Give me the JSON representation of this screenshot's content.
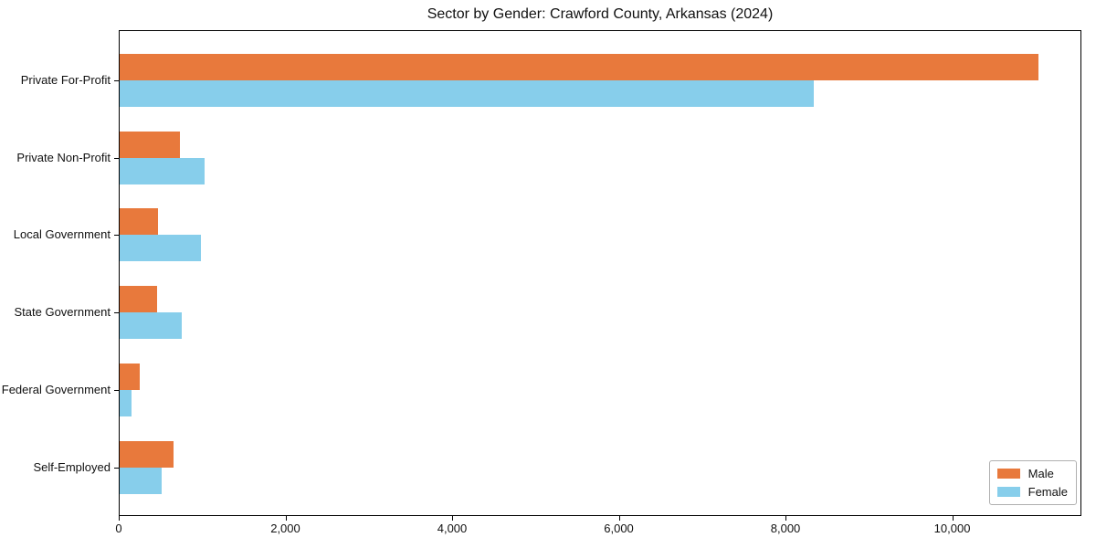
{
  "chart": {
    "background_color": "#ffffff",
    "spine_color": "#000000",
    "text_color": "#111111"
  },
  "chart_data": {
    "type": "bar",
    "orientation": "horizontal",
    "title": "Sector by Gender: Crawford County, Arkansas (2024)",
    "categories": [
      "Private For-Profit",
      "Private Non-Profit",
      "Local Government",
      "State Government",
      "Federal Government",
      "Self-Employed"
    ],
    "series": [
      {
        "name": "Male",
        "color": "#E8793C",
        "values": [
          11020,
          722,
          460,
          446,
          244,
          650
        ]
      },
      {
        "name": "Female",
        "color": "#87CEEB",
        "values": [
          8330,
          1015,
          975,
          741,
          146,
          504
        ]
      }
    ],
    "xlabel": "",
    "ylabel": "",
    "xlim": [
      0,
      11550
    ],
    "xticks": [
      0,
      2000,
      4000,
      6000,
      8000,
      10000
    ],
    "xtick_labels": [
      "0",
      "2,000",
      "4,000",
      "6,000",
      "8,000",
      "10,000"
    ],
    "grid": false,
    "legend_position": "lower right"
  }
}
